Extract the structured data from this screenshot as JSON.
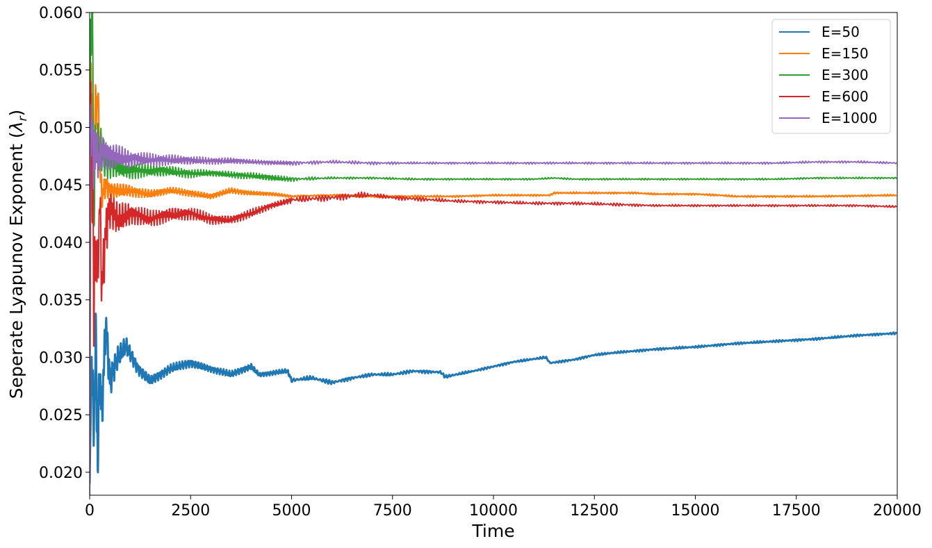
{
  "chart_data": {
    "type": "line",
    "xlabel": "Time",
    "ylabel_main": "Seperate Lyapunov Exponent (",
    "ylabel_symbol": "λ",
    "ylabel_sub": "r",
    "ylabel_close": ")",
    "xlim": [
      0,
      20000
    ],
    "ylim": [
      0.018,
      0.06
    ],
    "xticks": [
      0,
      2500,
      5000,
      7500,
      10000,
      12500,
      15000,
      17500,
      20000
    ],
    "xtick_labels": [
      "0",
      "2500",
      "5000",
      "7500",
      "10000",
      "12500",
      "15000",
      "17500",
      "20000"
    ],
    "yticks": [
      0.02,
      0.025,
      0.03,
      0.035,
      0.04,
      0.045,
      0.05,
      0.055,
      0.06
    ],
    "ytick_labels": [
      "0.020",
      "0.025",
      "0.030",
      "0.035",
      "0.040",
      "0.045",
      "0.050",
      "0.055",
      "0.060"
    ],
    "grid": false,
    "legend_position": "top-right",
    "series": [
      {
        "name": "E=50",
        "color": "#1f77b4",
        "x": [
          0,
          50,
          100,
          150,
          200,
          250,
          300,
          400,
          500,
          700,
          900,
          1200,
          1500,
          2000,
          2500,
          3000,
          3500,
          4000,
          4200,
          4900,
          5000,
          5500,
          6000,
          6500,
          7000,
          7500,
          8000,
          8700,
          8800,
          9500,
          10000,
          10500,
          11300,
          11400,
          12000,
          12500,
          13000,
          14000,
          15000,
          16000,
          17000,
          18000,
          19000,
          20000
        ],
        "y": [
          0.019,
          0.03,
          0.024,
          0.031,
          0.021,
          0.029,
          0.025,
          0.033,
          0.028,
          0.03,
          0.031,
          0.029,
          0.028,
          0.029,
          0.0295,
          0.029,
          0.0285,
          0.0292,
          0.0285,
          0.0288,
          0.028,
          0.0282,
          0.0278,
          0.0282,
          0.0285,
          0.0285,
          0.0288,
          0.0287,
          0.0283,
          0.0288,
          0.0292,
          0.0296,
          0.03,
          0.0295,
          0.0298,
          0.0302,
          0.0304,
          0.0307,
          0.0309,
          0.0312,
          0.0314,
          0.0316,
          0.0319,
          0.0321
        ],
        "jitter": [
          0.0,
          0.0015,
          0.0035,
          0.0035,
          0.0035,
          0.003,
          0.0025,
          0.002,
          0.0015,
          0.001,
          0.0008,
          0.0006,
          0.0005,
          0.0004,
          0.0004,
          0.0003,
          0.0003,
          0.0003,
          0.0002,
          0.0002,
          0.0002,
          0.0002,
          0.0002,
          0.00015,
          0.00015,
          0.00015,
          0.00015,
          0.00015,
          0.00015,
          0.0001,
          0.0001,
          0.0001,
          0.0001,
          0.0001,
          0.0001,
          0.0001,
          0.0001,
          0.0001,
          0.0001,
          0.0001,
          0.0001,
          0.0001,
          0.0001,
          0.0001
        ],
        "stroke_width": 3
      },
      {
        "name": "E=150",
        "color": "#ff7f0e",
        "x": [
          0,
          30,
          60,
          100,
          150,
          200,
          250,
          300,
          400,
          500,
          700,
          1000,
          1500,
          2000,
          2500,
          3000,
          3500,
          4000,
          4500,
          5000,
          6000,
          7000,
          8000,
          9000,
          10000,
          11400,
          11500,
          12500,
          13500,
          14000,
          15000,
          15600,
          16000,
          18000,
          20000
        ],
        "y": [
          0.02,
          0.055,
          0.05,
          0.048,
          0.051,
          0.053,
          0.047,
          0.044,
          0.045,
          0.0445,
          0.0445,
          0.0445,
          0.0442,
          0.0445,
          0.0443,
          0.044,
          0.0445,
          0.0443,
          0.0442,
          0.044,
          0.0441,
          0.044,
          0.044,
          0.044,
          0.0441,
          0.0441,
          0.0443,
          0.0443,
          0.0443,
          0.0442,
          0.0442,
          0.0441,
          0.044,
          0.044,
          0.0441
        ],
        "jitter": [
          0.0,
          0.004,
          0.004,
          0.003,
          0.003,
          0.002,
          0.0015,
          0.0012,
          0.001,
          0.0008,
          0.0006,
          0.0005,
          0.0004,
          0.0003,
          0.0003,
          0.00025,
          0.00025,
          0.0002,
          0.00015,
          0.0001,
          0.0001,
          0.0001,
          0.0001,
          8e-05,
          8e-05,
          8e-05,
          8e-05,
          8e-05,
          8e-05,
          8e-05,
          8e-05,
          8e-05,
          8e-05,
          8e-05,
          8e-05
        ],
        "stroke_width": 2.5
      },
      {
        "name": "E=300",
        "color": "#2ca02c",
        "x": [
          0,
          20,
          50,
          80,
          100,
          150,
          200,
          300,
          400,
          600,
          800,
          1000,
          1500,
          2000,
          2500,
          3000,
          3500,
          4000,
          4500,
          5000,
          6000,
          7000,
          8000,
          9000,
          10000,
          11000,
          11500,
          12000,
          13000,
          14000,
          15000,
          16000,
          17000,
          18000,
          19000,
          20000
        ],
        "y": [
          0.031,
          0.058,
          0.06,
          0.058,
          0.042,
          0.049,
          0.048,
          0.048,
          0.047,
          0.0468,
          0.0465,
          0.0463,
          0.0462,
          0.0462,
          0.046,
          0.046,
          0.0459,
          0.0458,
          0.0456,
          0.0455,
          0.0456,
          0.0456,
          0.0455,
          0.0455,
          0.0455,
          0.0455,
          0.0456,
          0.0455,
          0.0455,
          0.0455,
          0.0455,
          0.0455,
          0.0455,
          0.0456,
          0.0456,
          0.0456
        ],
        "jitter": [
          0.0,
          0.004,
          0.004,
          0.004,
          0.004,
          0.003,
          0.0025,
          0.002,
          0.0015,
          0.0012,
          0.001,
          0.0008,
          0.0006,
          0.0005,
          0.0004,
          0.0003,
          0.0003,
          0.0003,
          0.0003,
          0.0002,
          0.0001,
          0.0001,
          0.0001,
          8e-05,
          8e-05,
          8e-05,
          8e-05,
          8e-05,
          8e-05,
          8e-05,
          8e-05,
          8e-05,
          8e-05,
          8e-05,
          8e-05,
          8e-05
        ],
        "stroke_width": 2
      },
      {
        "name": "E=600",
        "color": "#d62728",
        "x": [
          0,
          30,
          60,
          80,
          100,
          150,
          200,
          250,
          300,
          400,
          500,
          700,
          1000,
          1500,
          2000,
          2500,
          3000,
          3500,
          4000,
          4500,
          5000,
          5500,
          6000,
          6700,
          7000,
          7500,
          8000,
          9000,
          10000,
          11000,
          12000,
          13000,
          14000,
          15000,
          16000,
          17000,
          18000,
          19000,
          20000
        ],
        "y": [
          0.019,
          0.057,
          0.04,
          0.048,
          0.033,
          0.04,
          0.037,
          0.044,
          0.036,
          0.041,
          0.043,
          0.042,
          0.0425,
          0.042,
          0.0425,
          0.0425,
          0.042,
          0.042,
          0.0425,
          0.0432,
          0.0437,
          0.0438,
          0.0439,
          0.0441,
          0.0441,
          0.0439,
          0.0438,
          0.0436,
          0.0435,
          0.0434,
          0.0434,
          0.0433,
          0.0432,
          0.0432,
          0.0432,
          0.0432,
          0.0432,
          0.0432,
          0.0431
        ],
        "jitter": [
          0.0,
          0.004,
          0.004,
          0.004,
          0.004,
          0.004,
          0.003,
          0.003,
          0.003,
          0.0025,
          0.0018,
          0.0014,
          0.001,
          0.0008,
          0.0007,
          0.0006,
          0.0005,
          0.0004,
          0.0004,
          0.0003,
          0.0003,
          0.0003,
          0.0003,
          0.0003,
          0.0002,
          0.0002,
          0.0002,
          0.00015,
          0.00015,
          0.00015,
          0.00015,
          0.00015,
          0.0001,
          0.0001,
          0.0001,
          0.0001,
          0.0001,
          0.0001,
          0.0001
        ],
        "stroke_width": 2
      },
      {
        "name": "E=1000",
        "color": "#9467bd",
        "x": [
          0,
          20,
          40,
          60,
          100,
          150,
          200,
          300,
          500,
          700,
          1000,
          1500,
          2000,
          2500,
          3000,
          3500,
          4000,
          5000,
          6000,
          7000,
          8000,
          9000,
          10000,
          11000,
          12000,
          13000,
          14000,
          15000,
          16000,
          17000,
          18000,
          19000,
          20000
        ],
        "y": [
          0.018,
          0.055,
          0.044,
          0.052,
          0.046,
          0.049,
          0.047,
          0.048,
          0.0475,
          0.0475,
          0.0472,
          0.0472,
          0.0472,
          0.0471,
          0.0471,
          0.0471,
          0.047,
          0.0469,
          0.047,
          0.0469,
          0.0469,
          0.0469,
          0.0469,
          0.0469,
          0.0469,
          0.0469,
          0.0469,
          0.0469,
          0.0469,
          0.0469,
          0.047,
          0.047,
          0.0469
        ],
        "jitter": [
          0.0,
          0.004,
          0.004,
          0.003,
          0.003,
          0.0025,
          0.002,
          0.0015,
          0.0012,
          0.001,
          0.0008,
          0.0006,
          0.0005,
          0.0004,
          0.0003,
          0.0003,
          0.0002,
          0.0002,
          0.00015,
          0.00015,
          0.0001,
          0.0001,
          0.0001,
          0.0001,
          0.0001,
          0.0001,
          0.0001,
          0.0001,
          0.0001,
          0.0001,
          0.0001,
          0.0001,
          0.0001
        ],
        "stroke_width": 2
      }
    ]
  }
}
